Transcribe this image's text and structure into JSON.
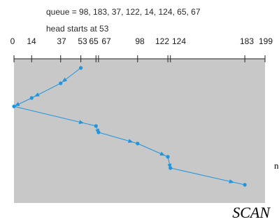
{
  "header": {
    "queue_line": "queue = 98, 183, 37, 122, 14, 124, 65, 67",
    "start_line": "head starts at 53"
  },
  "axis": {
    "min": 0,
    "max": 199,
    "ticks": [
      {
        "value": 0,
        "label": "0"
      },
      {
        "value": 14,
        "label": "14"
      },
      {
        "value": 37,
        "label": "37"
      },
      {
        "value": 53,
        "label": "53"
      },
      {
        "value": 65,
        "label": "65"
      },
      {
        "value": 67,
        "label": "67"
      },
      {
        "value": 98,
        "label": "98"
      },
      {
        "value": 122,
        "label": "122"
      },
      {
        "value": 124,
        "label": "124"
      },
      {
        "value": 183,
        "label": "183"
      },
      {
        "value": 199,
        "label": "199"
      }
    ]
  },
  "chart_data": {
    "type": "line",
    "x": [
      53,
      37,
      14,
      0,
      65,
      67,
      98,
      122,
      124,
      183
    ],
    "xlim": [
      0,
      199
    ]
  },
  "colors": {
    "panel": "#c8c8c8",
    "path": "#1f95dd",
    "axis": "#222222"
  },
  "left_edge_text": "n",
  "caption": "SCAN"
}
